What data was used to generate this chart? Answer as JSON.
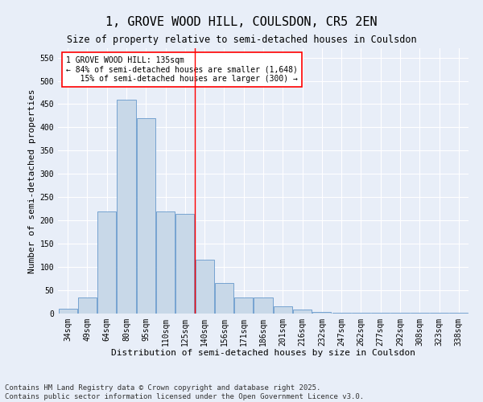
{
  "title1": "1, GROVE WOOD HILL, COULSDON, CR5 2EN",
  "title2": "Size of property relative to semi-detached houses in Coulsdon",
  "xlabel": "Distribution of semi-detached houses by size in Coulsdon",
  "ylabel": "Number of semi-detached properties",
  "categories": [
    "34sqm",
    "49sqm",
    "64sqm",
    "80sqm",
    "95sqm",
    "110sqm",
    "125sqm",
    "140sqm",
    "156sqm",
    "171sqm",
    "186sqm",
    "201sqm",
    "216sqm",
    "232sqm",
    "247sqm",
    "262sqm",
    "277sqm",
    "292sqm",
    "308sqm",
    "323sqm",
    "338sqm"
  ],
  "values": [
    10,
    35,
    220,
    460,
    420,
    220,
    215,
    115,
    65,
    35,
    35,
    15,
    8,
    3,
    2,
    1,
    1,
    1,
    1,
    1,
    2
  ],
  "bar_color": "#c8d8e8",
  "bar_edge_color": "#6699cc",
  "vline_x_index": 7,
  "vline_color": "red",
  "annotation_line1": "1 GROVE WOOD HILL: 135sqm",
  "annotation_line2": "← 84% of semi-detached houses are smaller (1,648)",
  "annotation_line3": "   15% of semi-detached houses are larger (300) →",
  "annotation_box_color": "white",
  "annotation_box_edge": "red",
  "ylim": [
    0,
    570
  ],
  "yticks": [
    0,
    50,
    100,
    150,
    200,
    250,
    300,
    350,
    400,
    450,
    500,
    550
  ],
  "background_color": "#e8eef8",
  "footer1": "Contains HM Land Registry data © Crown copyright and database right 2025.",
  "footer2": "Contains public sector information licensed under the Open Government Licence v3.0.",
  "title_fontsize": 11,
  "xlabel_fontsize": 8,
  "ylabel_fontsize": 8,
  "tick_fontsize": 7,
  "annotation_fontsize": 7,
  "footer_fontsize": 6.5
}
